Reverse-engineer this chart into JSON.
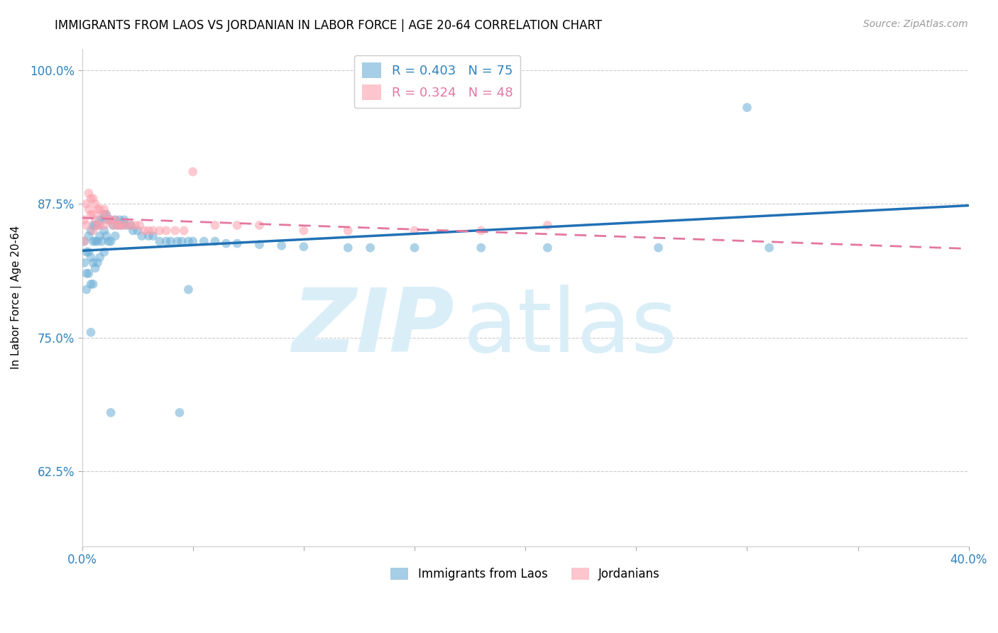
{
  "title": "IMMIGRANTS FROM LAOS VS JORDANIAN IN LABOR FORCE | AGE 20-64 CORRELATION CHART",
  "source": "Source: ZipAtlas.com",
  "ylabel": "In Labor Force | Age 20-64",
  "laos_R": 0.403,
  "laos_N": 75,
  "jordan_R": 0.324,
  "jordan_N": 48,
  "xlim": [
    0.0,
    0.4
  ],
  "ylim": [
    0.555,
    1.02
  ],
  "yticks": [
    0.625,
    0.75,
    0.875,
    1.0
  ],
  "ytick_labels": [
    "62.5%",
    "75.0%",
    "87.5%",
    "100.0%"
  ],
  "xticks": [
    0.0,
    0.05,
    0.1,
    0.15,
    0.2,
    0.25,
    0.3,
    0.35,
    0.4
  ],
  "xtick_labels": [
    "0.0%",
    "",
    "",
    "",
    "",
    "",
    "",
    "",
    "40.0%"
  ],
  "blue_color": "#6baed6",
  "pink_color": "#fc9fac",
  "line_blue": "#2171b5",
  "line_pink": "#e377a0",
  "tick_color": "#3182bd",
  "grid_color": "#cccccc",
  "background_color": "#ffffff",
  "laos_x": [
    0.001,
    0.001,
    0.002,
    0.002,
    0.002,
    0.003,
    0.003,
    0.003,
    0.004,
    0.004,
    0.004,
    0.005,
    0.005,
    0.005,
    0.005,
    0.006,
    0.006,
    0.006,
    0.007,
    0.007,
    0.007,
    0.008,
    0.008,
    0.008,
    0.009,
    0.009,
    0.01,
    0.01,
    0.01,
    0.011,
    0.011,
    0.012,
    0.012,
    0.013,
    0.013,
    0.014,
    0.015,
    0.015,
    0.016,
    0.017,
    0.018,
    0.019,
    0.02,
    0.022,
    0.023,
    0.025,
    0.027,
    0.03,
    0.032,
    0.035,
    0.038,
    0.04,
    0.043,
    0.045,
    0.048,
    0.05,
    0.055,
    0.06,
    0.065,
    0.07,
    0.08,
    0.09,
    0.1,
    0.12,
    0.13,
    0.15,
    0.18,
    0.21,
    0.26,
    0.31,
    0.048,
    0.3,
    0.004,
    0.013,
    0.044
  ],
  "laos_y": [
    0.84,
    0.82,
    0.83,
    0.81,
    0.795,
    0.845,
    0.83,
    0.81,
    0.85,
    0.825,
    0.8,
    0.855,
    0.84,
    0.82,
    0.8,
    0.855,
    0.84,
    0.815,
    0.855,
    0.84,
    0.82,
    0.86,
    0.845,
    0.825,
    0.86,
    0.84,
    0.865,
    0.85,
    0.83,
    0.865,
    0.845,
    0.86,
    0.84,
    0.86,
    0.84,
    0.855,
    0.86,
    0.845,
    0.855,
    0.86,
    0.855,
    0.86,
    0.855,
    0.855,
    0.85,
    0.85,
    0.845,
    0.845,
    0.845,
    0.84,
    0.84,
    0.84,
    0.84,
    0.84,
    0.84,
    0.84,
    0.84,
    0.84,
    0.838,
    0.838,
    0.837,
    0.836,
    0.835,
    0.834,
    0.834,
    0.834,
    0.834,
    0.834,
    0.834,
    0.834,
    0.795,
    0.965,
    0.755,
    0.68,
    0.68
  ],
  "jordan_x": [
    0.001,
    0.001,
    0.002,
    0.002,
    0.003,
    0.003,
    0.004,
    0.004,
    0.005,
    0.005,
    0.005,
    0.006,
    0.006,
    0.007,
    0.007,
    0.008,
    0.008,
    0.009,
    0.01,
    0.01,
    0.011,
    0.012,
    0.013,
    0.014,
    0.015,
    0.016,
    0.017,
    0.018,
    0.02,
    0.022,
    0.024,
    0.026,
    0.028,
    0.03,
    0.032,
    0.035,
    0.038,
    0.042,
    0.046,
    0.05,
    0.06,
    0.07,
    0.08,
    0.1,
    0.12,
    0.15,
    0.18,
    0.21
  ],
  "jordan_y": [
    0.86,
    0.84,
    0.875,
    0.855,
    0.885,
    0.87,
    0.88,
    0.865,
    0.88,
    0.865,
    0.85,
    0.875,
    0.86,
    0.87,
    0.855,
    0.87,
    0.855,
    0.865,
    0.87,
    0.855,
    0.865,
    0.86,
    0.86,
    0.855,
    0.86,
    0.855,
    0.855,
    0.855,
    0.855,
    0.855,
    0.855,
    0.855,
    0.85,
    0.85,
    0.85,
    0.85,
    0.85,
    0.85,
    0.85,
    0.905,
    0.855,
    0.855,
    0.855,
    0.85,
    0.85,
    0.85,
    0.85,
    0.855
  ],
  "watermark_zip": "ZIP",
  "watermark_atlas": "atlas",
  "watermark_color": "#daeef8",
  "legend_fontsize": 13,
  "title_fontsize": 12,
  "marker_size": 85
}
